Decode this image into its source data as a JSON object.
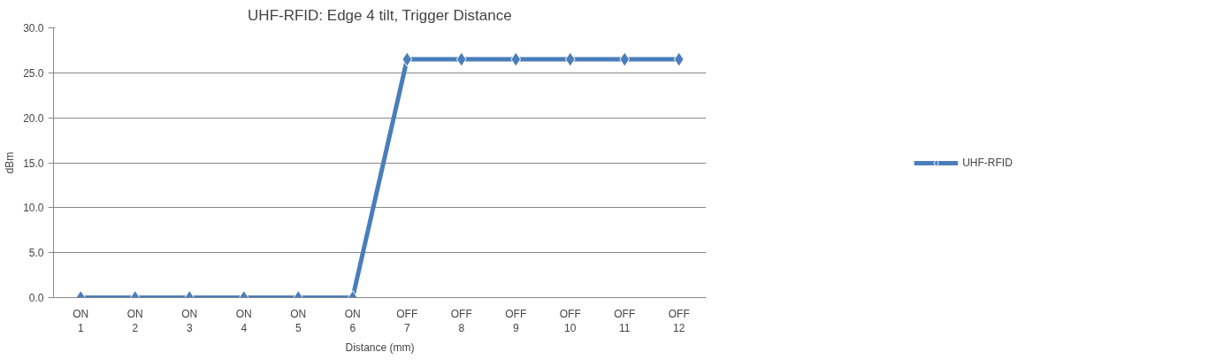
{
  "chart_data": {
    "type": "line",
    "title": "UHF-RFID: Edge 4 tilt, Trigger Distance",
    "xlabel": "Distance (mm)",
    "ylabel": "dBm",
    "categories": [
      "ON\n1",
      "ON\n2",
      "ON\n3",
      "ON\n4",
      "ON\n5",
      "ON\n6",
      "OFF\n7",
      "OFF\n8",
      "OFF\n9",
      "OFF\n10",
      "OFF\n11",
      "OFF\n12"
    ],
    "series": [
      {
        "name": "UHF-RFID",
        "color": "#4a7ebb",
        "values": [
          0,
          0,
          0,
          0,
          0,
          0,
          26.5,
          26.5,
          26.5,
          26.5,
          26.5,
          26.5
        ]
      }
    ],
    "ylim": [
      0,
      30
    ],
    "yticks": [
      {
        "value": 0,
        "label": "0.0"
      },
      {
        "value": 5,
        "label": "5.0"
      },
      {
        "value": 10,
        "label": "10.0"
      },
      {
        "value": 15,
        "label": "15.0"
      },
      {
        "value": 20,
        "label": "20.0"
      },
      {
        "value": 25,
        "label": "25.0"
      },
      {
        "value": 30,
        "label": "30.0"
      }
    ],
    "grid": "y",
    "legend": "right",
    "marker": "diamond",
    "line_style": "solid"
  }
}
